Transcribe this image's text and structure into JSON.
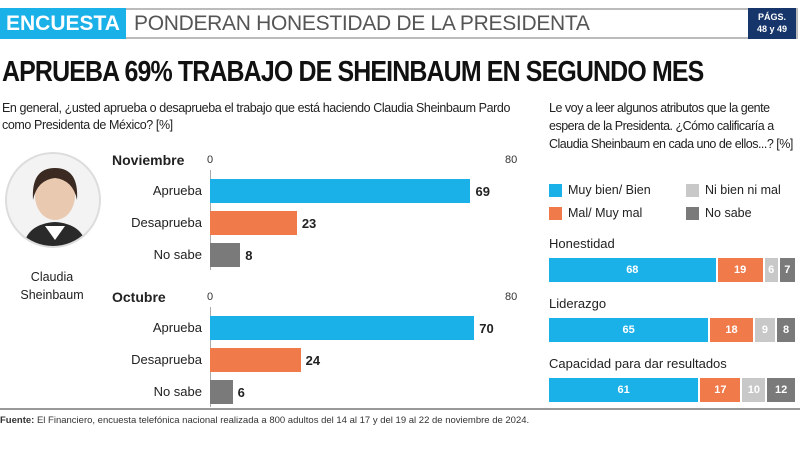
{
  "header": {
    "section": "ENCUESTA",
    "title": "PONDERAN HONESTIDAD DE LA PRESIDENTA",
    "pages_line1": "PÁGS.",
    "pages_line2": "48 y 49"
  },
  "headline": "APRUEBA 69% TRABAJO DE SHEINBAUM EN SEGUNDO MES",
  "person": {
    "name_line1": "Claudia",
    "name_line2": "Sheinbaum"
  },
  "colors": {
    "blue": "#1ab0e8",
    "orange": "#f07a4a",
    "light_gray": "#c8c8c8",
    "dark_gray": "#7a7a7a"
  },
  "source_label": "Fuente:",
  "source": "El Financiero, encuesta telefónica nacional realizada a 800 adultos del 14 al 17 y del 19 al 22 de noviembre de 2024.",
  "chart_data": [
    {
      "type": "bar",
      "orientation": "horizontal",
      "title": "En general, ¿usted aprueba o desaprueba el trabajo que está haciendo Claudia Sheinbaum Pardo como Presidenta de México? [%]",
      "xlim": [
        0,
        80
      ],
      "ticks": [
        "0",
        "80"
      ],
      "groups": [
        {
          "name": "Noviembre",
          "categories": [
            "Aprueba",
            "Desaprueba",
            "No sabe"
          ],
          "values": [
            69,
            23,
            8
          ]
        },
        {
          "name": "Octubre",
          "categories": [
            "Aprueba",
            "Desaprueba",
            "No sabe"
          ],
          "values": [
            70,
            24,
            6
          ]
        }
      ],
      "bar_colors": [
        "#1ab0e8",
        "#f07a4a",
        "#7a7a7a"
      ]
    },
    {
      "type": "bar",
      "orientation": "horizontal",
      "stacked": true,
      "title": "Le voy a leer algunos atributos que la gente espera de la Presidenta. ¿Cómo calificaría a Claudia Sheinbaum en cada uno de ellos...? [%]",
      "legend": [
        "Muy bien/ Bien",
        "Ni bien ni mal",
        "Mal/ Muy mal",
        "No sabe"
      ],
      "legend_placement": "top",
      "categories": [
        "Honestidad",
        "Liderazgo",
        "Capacidad para dar resultados"
      ],
      "series": [
        {
          "name": "Muy bien/ Bien",
          "color": "#1ab0e8",
          "values": [
            68,
            65,
            61
          ]
        },
        {
          "name": "Mal/ Muy mal",
          "color": "#f07a4a",
          "values": [
            19,
            18,
            17
          ]
        },
        {
          "name": "Ni bien ni mal",
          "color": "#c8c8c8",
          "values": [
            6,
            9,
            10
          ]
        },
        {
          "name": "No sabe",
          "color": "#7a7a7a",
          "values": [
            7,
            8,
            12
          ]
        }
      ]
    }
  ]
}
